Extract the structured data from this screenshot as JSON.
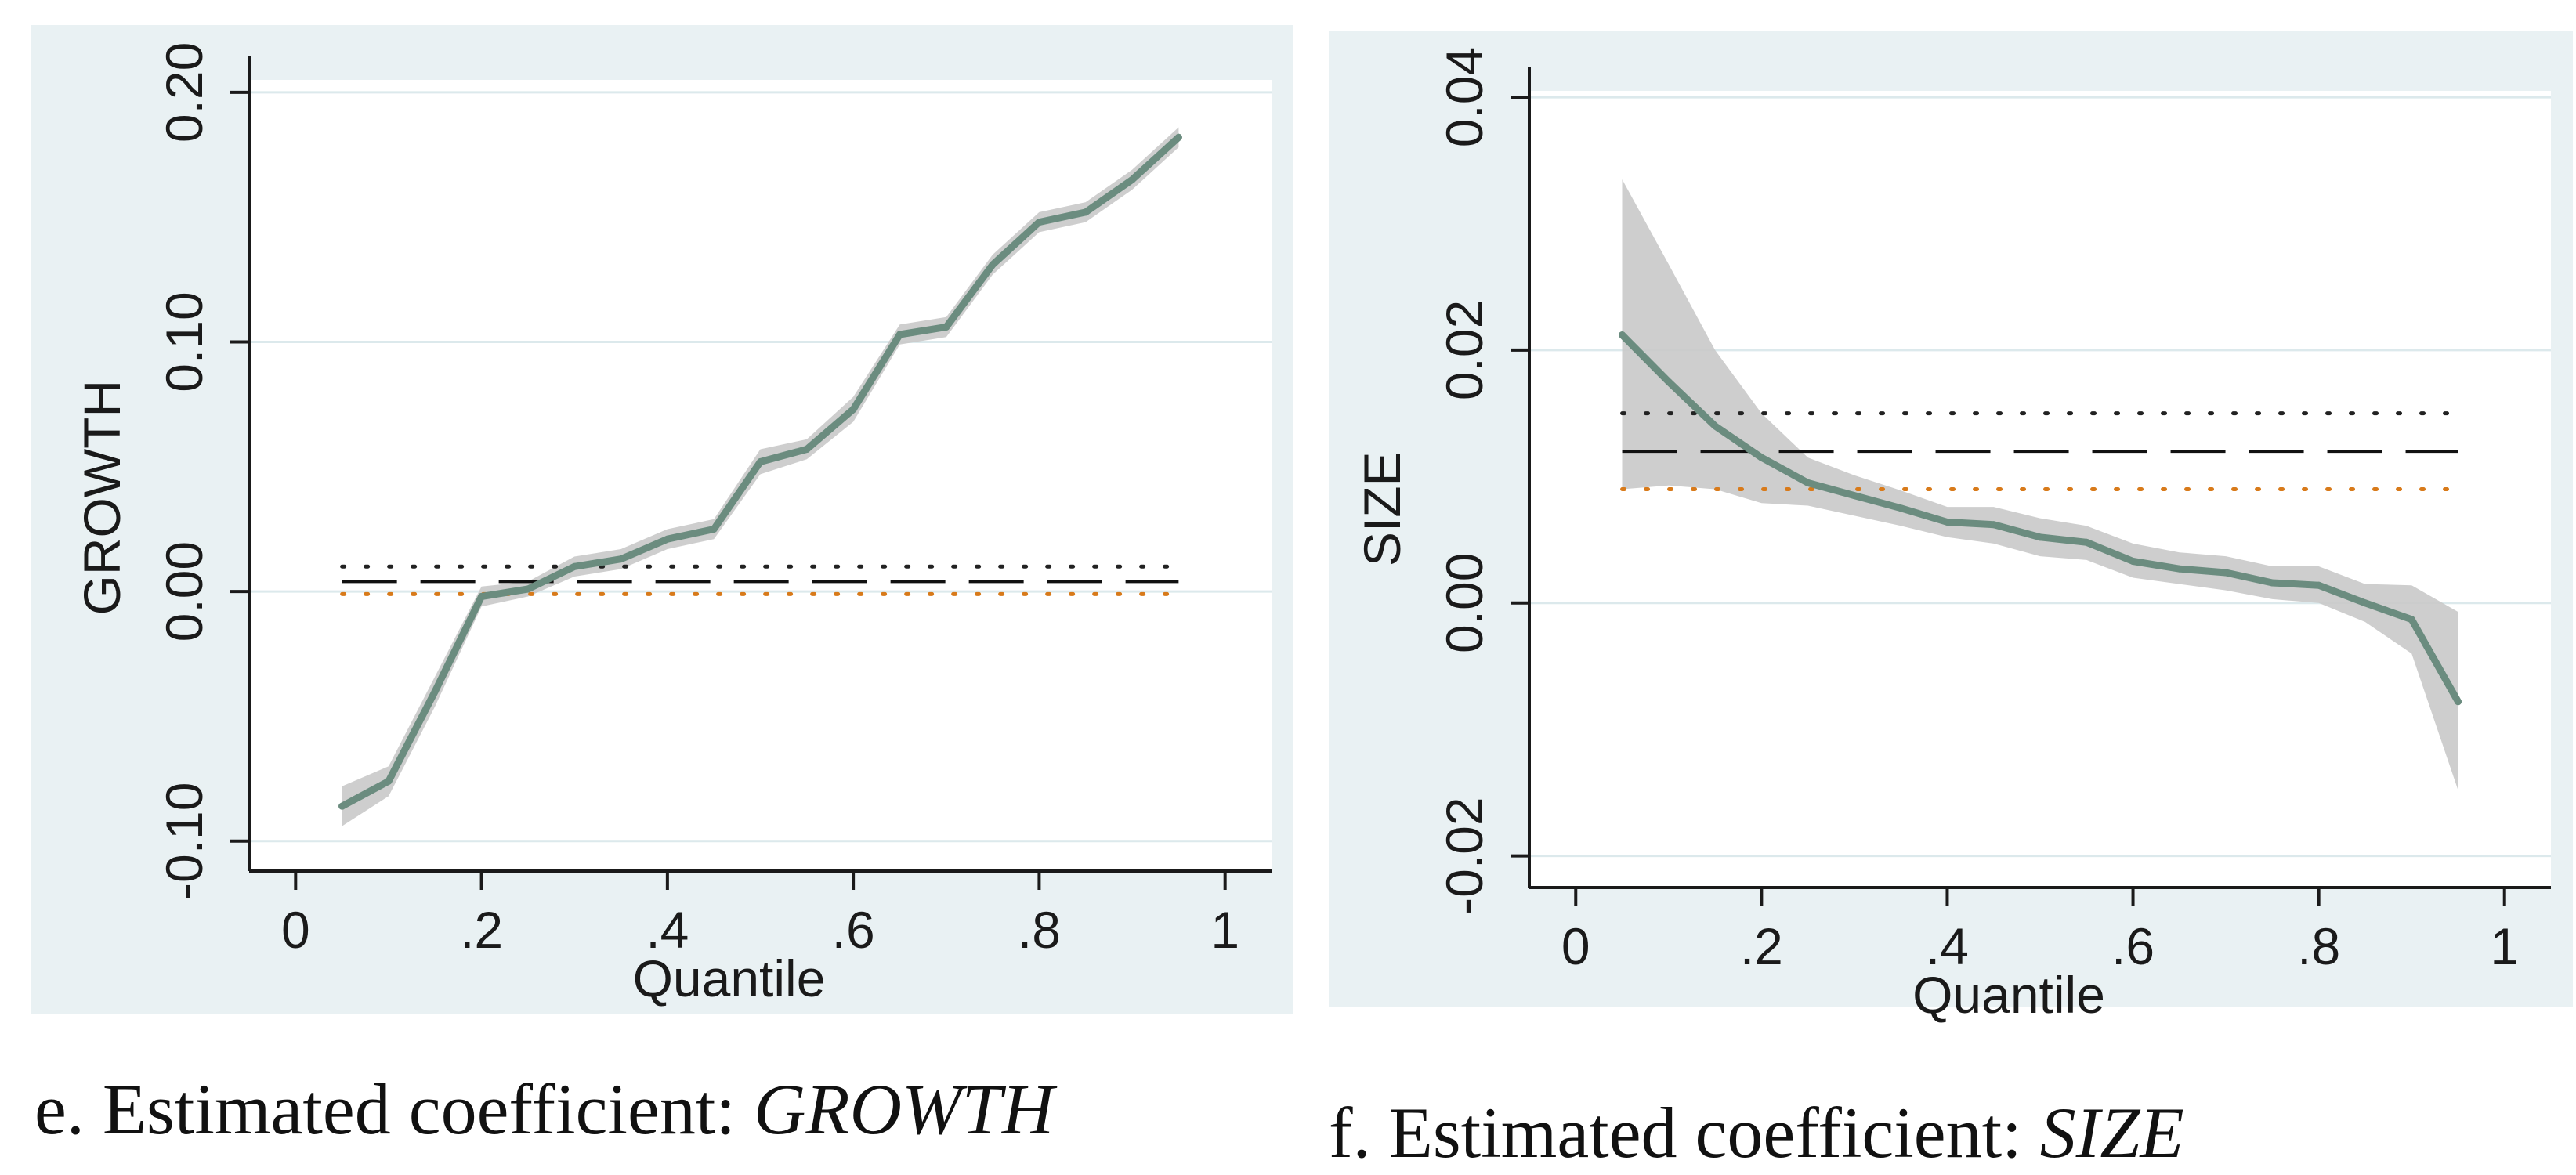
{
  "colors": {
    "panel_background": "#e9f1f3",
    "plot_background": "#ffffff",
    "gridline": "#dce9ec",
    "coefficient_line": "#6b8c7f",
    "confidence_band": "#c9c9c9",
    "ols_line": "#111111",
    "ols_ci_dots_upper": "#222222",
    "ols_ci_dots_lower": "#d87a1a",
    "axis": "#1a1a1a"
  },
  "captions": {
    "e": {
      "prefix": "e. Estimated coefficient: ",
      "variable": "GROWTH"
    },
    "f": {
      "prefix": "f. Estimated coefficient: ",
      "variable": "SIZE"
    }
  },
  "chart_data": [
    {
      "id": "e",
      "type": "line",
      "ylabel": "GROWTH",
      "xlabel": "Quantile",
      "xlim": [
        -0.05,
        1.05
      ],
      "ylim": [
        -0.112,
        0.205
      ],
      "xticks": [
        0,
        0.2,
        0.4,
        0.6,
        0.8,
        1
      ],
      "xtick_labels": [
        "0",
        ".2",
        ".4",
        ".6",
        ".8",
        "1"
      ],
      "yticks": [
        -0.1,
        0,
        0.1,
        0.2
      ],
      "ytick_labels": [
        "-0.10",
        "0.00",
        "0.10",
        "0.20"
      ],
      "grid": true,
      "series": [
        {
          "name": "quantile coefficient",
          "x": [
            0.05,
            0.1,
            0.15,
            0.2,
            0.25,
            0.3,
            0.35,
            0.4,
            0.45,
            0.5,
            0.55,
            0.6,
            0.65,
            0.7,
            0.75,
            0.8,
            0.85,
            0.9,
            0.95
          ],
          "values": [
            -0.086,
            -0.076,
            -0.04,
            -0.002,
            0.001,
            0.01,
            0.013,
            0.021,
            0.025,
            0.052,
            0.057,
            0.073,
            0.103,
            0.106,
            0.131,
            0.148,
            0.152,
            0.165,
            0.182
          ],
          "lower": [
            -0.094,
            -0.082,
            -0.046,
            -0.006,
            -0.002,
            0.006,
            0.009,
            0.017,
            0.021,
            0.047,
            0.053,
            0.068,
            0.099,
            0.102,
            0.127,
            0.144,
            0.148,
            0.161,
            0.178
          ],
          "upper": [
            -0.078,
            -0.07,
            -0.034,
            0.002,
            0.004,
            0.014,
            0.017,
            0.025,
            0.029,
            0.057,
            0.061,
            0.078,
            0.107,
            0.11,
            0.135,
            0.152,
            0.156,
            0.169,
            0.186
          ]
        }
      ],
      "ols": {
        "estimate": 0.004,
        "ci_lower": -0.001,
        "ci_upper": 0.01,
        "x_range": [
          0.05,
          0.95
        ]
      }
    },
    {
      "id": "f",
      "type": "line",
      "ylabel": "SIZE",
      "xlabel": "Quantile",
      "xlim": [
        -0.05,
        1.05
      ],
      "ylim": [
        -0.0225,
        0.0405
      ],
      "xticks": [
        0,
        0.2,
        0.4,
        0.6,
        0.8,
        1
      ],
      "xtick_labels": [
        "0",
        ".2",
        ".4",
        ".6",
        ".8",
        "1"
      ],
      "yticks": [
        -0.02,
        0,
        0.02,
        0.04
      ],
      "ytick_labels": [
        "-0.02",
        "0.00",
        "0.02",
        "0.04"
      ],
      "grid": true,
      "series": [
        {
          "name": "quantile coefficient",
          "x": [
            0.05,
            0.1,
            0.15,
            0.2,
            0.25,
            0.3,
            0.35,
            0.4,
            0.45,
            0.5,
            0.55,
            0.6,
            0.65,
            0.7,
            0.75,
            0.8,
            0.85,
            0.9,
            0.95
          ],
          "values": [
            0.0212,
            0.0175,
            0.014,
            0.0115,
            0.0095,
            0.0085,
            0.0075,
            0.0064,
            0.0062,
            0.0052,
            0.0048,
            0.0033,
            0.0027,
            0.0024,
            0.0016,
            0.0014,
            0.0,
            -0.0013,
            -0.0078
          ],
          "lower": [
            0.009,
            0.0093,
            0.009,
            0.0079,
            0.0077,
            0.0069,
            0.0061,
            0.0052,
            0.0047,
            0.0037,
            0.0034,
            0.002,
            0.0015,
            0.001,
            0.0003,
            0.0,
            -0.0015,
            -0.004,
            -0.0148
          ],
          "upper": [
            0.0335,
            0.0268,
            0.02,
            0.015,
            0.0115,
            0.0101,
            0.0089,
            0.0076,
            0.0076,
            0.0067,
            0.0061,
            0.0047,
            0.004,
            0.0037,
            0.0029,
            0.0029,
            0.0015,
            0.0014,
            -0.0007
          ]
        }
      ],
      "ols": {
        "estimate": 0.012,
        "ci_lower": 0.009,
        "ci_upper": 0.015,
        "x_range": [
          0.05,
          0.95
        ]
      }
    }
  ]
}
